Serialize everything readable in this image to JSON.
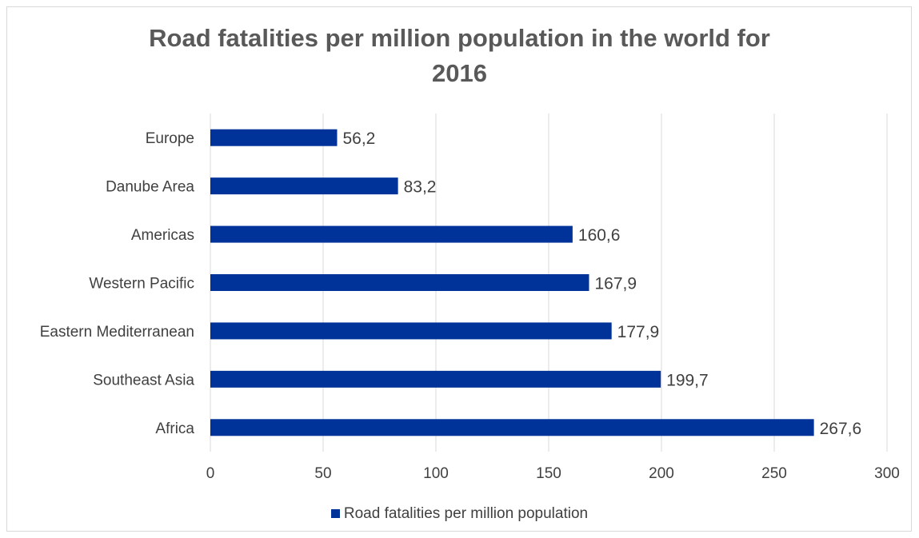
{
  "chart_data": {
    "type": "bar",
    "orientation": "horizontal",
    "title": "Road fatalities per million population in the world for\n2016",
    "categories": [
      "Europe",
      "Danube Area",
      "Americas",
      "Western Pacific ",
      "Eastern Mediterranean",
      "Southeast Asia",
      "Africa"
    ],
    "series": [
      {
        "name": "Road fatalities per million population",
        "values": [
          56.2,
          83.2,
          160.6,
          167.9,
          177.9,
          199.7,
          267.6
        ],
        "labels": [
          "56,2",
          "83,2",
          "160,6",
          "167,9",
          "177,9",
          "199,7",
          "267,6"
        ],
        "color": "#003399"
      }
    ],
    "xlim": [
      0,
      300
    ],
    "xticks": [
      "0",
      "50",
      "100",
      "150",
      "200",
      "250",
      "300"
    ],
    "grid": "vertical",
    "legend_position": "bottom"
  }
}
